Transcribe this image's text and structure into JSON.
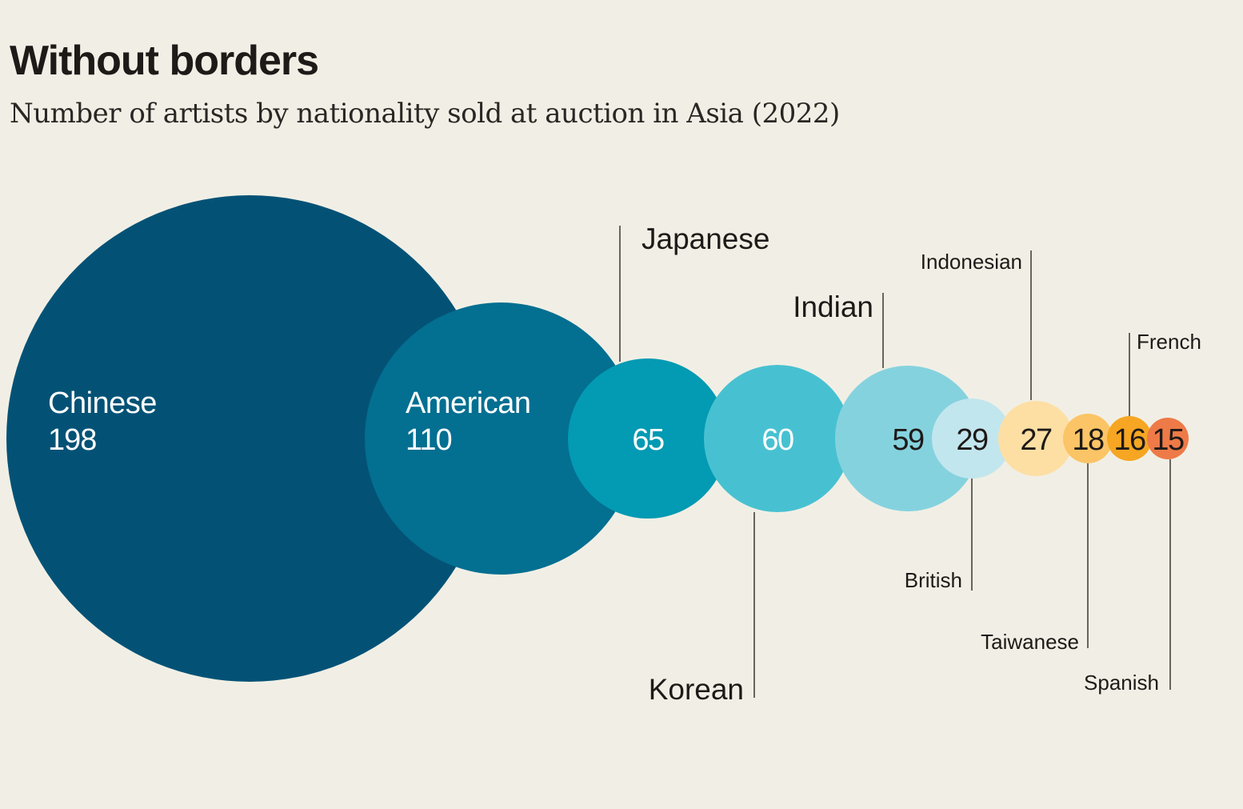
{
  "header": {
    "title": "Without borders",
    "subtitle": "Number of artists by nationality sold at auction in Asia (2022)"
  },
  "chart_data": {
    "type": "bubble",
    "title": "Without borders",
    "subtitle": "Number of artists by nationality sold at auction in Asia (2022)",
    "unit": "artists",
    "series": [
      {
        "name": "Chinese",
        "value": 198,
        "color": "#035276",
        "text_color": "#ffffff",
        "label_inside": true
      },
      {
        "name": "American",
        "value": 110,
        "color": "#036f91",
        "text_color": "#ffffff",
        "label_inside": true
      },
      {
        "name": "Japanese",
        "value": 65,
        "color": "#039ab3",
        "text_color": "#ffffff",
        "label_inside": false,
        "label_side": "top"
      },
      {
        "name": "Korean",
        "value": 60,
        "color": "#47c1d1",
        "text_color": "#ffffff",
        "label_inside": false,
        "label_side": "bottom"
      },
      {
        "name": "Indian",
        "value": 59,
        "color": "#85d2df",
        "text_color": "#1e1a18",
        "label_inside": false,
        "label_side": "top"
      },
      {
        "name": "British",
        "value": 29,
        "color": "#c2e6ee",
        "text_color": "#1e1a18",
        "label_inside": false,
        "label_side": "bottom"
      },
      {
        "name": "Indonesian",
        "value": 27,
        "color": "#fddfa4",
        "text_color": "#1e1a18",
        "label_inside": false,
        "label_side": "top"
      },
      {
        "name": "Taiwanese",
        "value": 18,
        "color": "#fbc466",
        "text_color": "#1e1a18",
        "label_inside": false,
        "label_side": "bottom"
      },
      {
        "name": "French",
        "value": 16,
        "color": "#f6a623",
        "text_color": "#1e1a18",
        "label_inside": false,
        "label_side": "top"
      },
      {
        "name": "Spanish",
        "value": 15,
        "color": "#ee7a47",
        "text_color": "#1e1a18",
        "label_inside": false,
        "label_side": "bottom"
      }
    ]
  }
}
